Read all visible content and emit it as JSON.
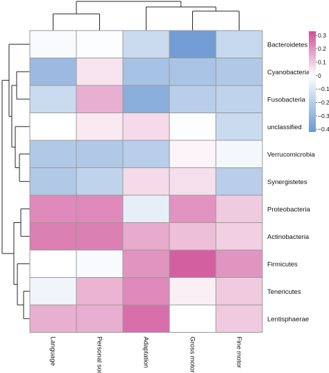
{
  "chart_data": {
    "type": "heatmap",
    "title": "",
    "xlabel": "",
    "ylabel": "",
    "columns": [
      "Language",
      "Personal social",
      "Adaptation",
      "Gross motor",
      "Fine motor"
    ],
    "rows": [
      "Bacteroidetes",
      "Cyanobacteria",
      "Fusobacteria",
      "unclassified",
      "Verrucomicrobia",
      "Synergistetes",
      "Proteobacteria",
      "Actinobacteria",
      "Firmicutes",
      "Tenericutes",
      "Lentisphaerae"
    ],
    "values": [
      [
        -0.02,
        -0.01,
        -0.15,
        -0.4,
        -0.16
      ],
      [
        -0.28,
        0.05,
        -0.25,
        -0.24,
        -0.22
      ],
      [
        -0.15,
        0.15,
        -0.33,
        -0.2,
        -0.18
      ],
      [
        0.0,
        0.04,
        0.07,
        -0.01,
        -0.15
      ],
      [
        -0.22,
        -0.22,
        -0.2,
        0.02,
        -0.03
      ],
      [
        -0.22,
        -0.18,
        0.07,
        0.06,
        -0.2
      ],
      [
        0.22,
        0.22,
        -0.07,
        0.2,
        0.1
      ],
      [
        0.24,
        0.24,
        0.16,
        0.12,
        0.09
      ],
      [
        0.0,
        -0.02,
        0.2,
        0.3,
        0.2
      ],
      [
        -0.04,
        0.14,
        0.22,
        0.03,
        0.1
      ],
      [
        0.15,
        0.15,
        0.27,
        0.0,
        0.1
      ]
    ],
    "legend": {
      "position": "right",
      "ticks": [
        "0.3",
        "0.2",
        "0.1",
        "0",
        "−0.1",
        "−0.2",
        "−0.3",
        "−0.4"
      ],
      "tick_values": [
        0.3,
        0.2,
        0.1,
        0,
        -0.1,
        -0.2,
        -0.3,
        -0.4
      ],
      "range": [
        -0.42,
        0.33
      ]
    },
    "color_scale": {
      "low": "#6a98d2",
      "mid": "#ffffff",
      "high": "#cf4f97"
    },
    "cell_border_color": "#999999",
    "dendrogram_color": "#222222",
    "column_order_note": ""
  }
}
